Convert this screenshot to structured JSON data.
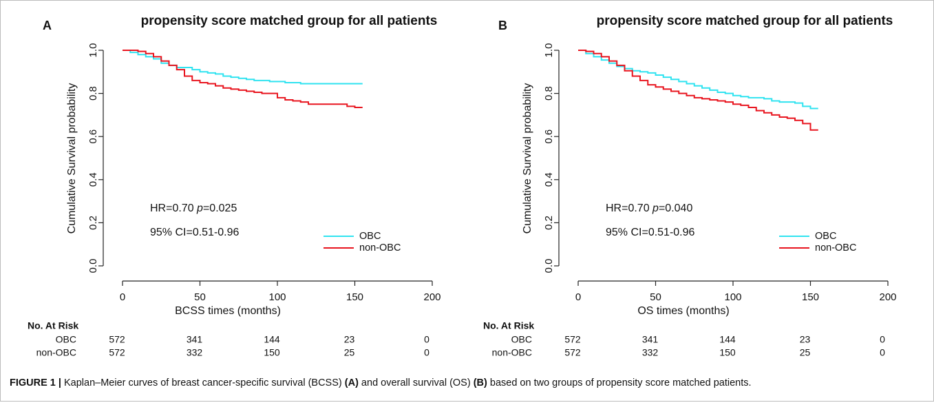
{
  "chart_data": [
    {
      "type": "line",
      "panel": "A",
      "title": "propensity score matched group for all patients",
      "x_label": "BCSS times (months)",
      "y_label": "Cumulative Survival probability",
      "x": [
        0,
        5,
        10,
        15,
        20,
        25,
        30,
        35,
        40,
        45,
        50,
        55,
        60,
        65,
        70,
        75,
        80,
        85,
        90,
        95,
        100,
        105,
        110,
        115,
        120,
        125,
        130,
        135,
        140,
        145,
        150,
        155
      ],
      "series": [
        {
          "name": "OBC",
          "color": "#2fe3f0",
          "values": [
            1.0,
            0.99,
            0.98,
            0.97,
            0.96,
            0.94,
            0.93,
            0.92,
            0.92,
            0.91,
            0.9,
            0.895,
            0.89,
            0.88,
            0.875,
            0.87,
            0.865,
            0.86,
            0.86,
            0.855,
            0.855,
            0.85,
            0.85,
            0.845,
            0.845,
            0.845,
            0.845,
            0.845,
            0.845,
            0.845,
            0.845,
            0.845
          ]
        },
        {
          "name": "non-OBC",
          "color": "#e8141e",
          "values": [
            1.0,
            1.0,
            0.995,
            0.985,
            0.97,
            0.95,
            0.93,
            0.91,
            0.88,
            0.86,
            0.85,
            0.845,
            0.835,
            0.825,
            0.82,
            0.815,
            0.81,
            0.805,
            0.8,
            0.8,
            0.78,
            0.77,
            0.765,
            0.76,
            0.75,
            0.75,
            0.75,
            0.75,
            0.75,
            0.74,
            0.735,
            0.735
          ]
        }
      ],
      "xlim": [
        0,
        200
      ],
      "xticks": [
        0,
        50,
        100,
        150,
        200
      ],
      "ylim": [
        0,
        1
      ],
      "yticks": [
        {
          "value": 0,
          "label": "0.0"
        },
        {
          "value": 0.2,
          "label": "0.2"
        },
        {
          "value": 0.4,
          "label": "0.4"
        },
        {
          "value": 0.6,
          "label": "0.6"
        },
        {
          "value": 0.8,
          "label": "0.8"
        },
        {
          "value": 1,
          "label": "1.0"
        }
      ],
      "legend": "bottom-right",
      "annotations": [
        {
          "parts": [
            "HR=0.70 ",
            "p",
            "=0.025"
          ]
        },
        "95% CI=0.51-0.96"
      ],
      "risk_table": {
        "title": "No. At Risk",
        "rows": [
          {
            "name": "OBC",
            "values": [
              "572",
              "341",
              "144",
              "23",
              "0"
            ]
          },
          {
            "name": "non-OBC",
            "values": [
              "572",
              "332",
              "150",
              "25",
              "0"
            ]
          }
        ]
      }
    },
    {
      "type": "line",
      "panel": "B",
      "title": "propensity score matched group for all patients",
      "x_label": "OS times (months)",
      "y_label": "Cumulative Survival probability",
      "x": [
        0,
        5,
        10,
        15,
        20,
        25,
        30,
        35,
        40,
        45,
        50,
        55,
        60,
        65,
        70,
        75,
        80,
        85,
        90,
        95,
        100,
        105,
        110,
        115,
        120,
        125,
        130,
        135,
        140,
        145,
        150,
        155
      ],
      "series": [
        {
          "name": "OBC",
          "color": "#2fe3f0",
          "values": [
            1.0,
            0.985,
            0.97,
            0.955,
            0.94,
            0.925,
            0.915,
            0.905,
            0.9,
            0.895,
            0.885,
            0.875,
            0.865,
            0.855,
            0.845,
            0.835,
            0.825,
            0.815,
            0.805,
            0.8,
            0.79,
            0.785,
            0.78,
            0.78,
            0.775,
            0.765,
            0.76,
            0.76,
            0.755,
            0.74,
            0.73,
            0.73
          ]
        },
        {
          "name": "non-OBC",
          "color": "#e8141e",
          "values": [
            1.0,
            0.995,
            0.985,
            0.97,
            0.95,
            0.93,
            0.905,
            0.88,
            0.86,
            0.84,
            0.83,
            0.82,
            0.81,
            0.8,
            0.79,
            0.78,
            0.775,
            0.77,
            0.765,
            0.76,
            0.75,
            0.745,
            0.735,
            0.72,
            0.71,
            0.7,
            0.69,
            0.685,
            0.675,
            0.66,
            0.63,
            0.63
          ]
        }
      ],
      "xlim": [
        0,
        200
      ],
      "xticks": [
        0,
        50,
        100,
        150,
        200
      ],
      "ylim": [
        0,
        1
      ],
      "yticks": [
        {
          "value": 0,
          "label": "0.0"
        },
        {
          "value": 0.2,
          "label": "0.2"
        },
        {
          "value": 0.4,
          "label": "0.4"
        },
        {
          "value": 0.6,
          "label": "0.6"
        },
        {
          "value": 0.8,
          "label": "0.8"
        },
        {
          "value": 1,
          "label": "1.0"
        }
      ],
      "legend": "bottom-right",
      "annotations": [
        {
          "parts": [
            "HR=0.70 ",
            "p",
            "=0.040"
          ]
        },
        "95% CI=0.51-0.96"
      ],
      "risk_table": {
        "title": "No. At Risk",
        "rows": [
          {
            "name": "OBC",
            "values": [
              "572",
              "341",
              "144",
              "23",
              "0"
            ]
          },
          {
            "name": "non-OBC",
            "values": [
              "572",
              "332",
              "150",
              "25",
              "0"
            ]
          }
        ]
      }
    }
  ],
  "caption": {
    "parts": [
      {
        "text": "FIGURE 1 |",
        "bold": true
      },
      {
        "text": " Kaplan–Meier curves of breast cancer-specific survival (BCSS) ",
        "bold": false
      },
      {
        "text": "(A)",
        "bold": true
      },
      {
        "text": " and overall survival (OS) ",
        "bold": false
      },
      {
        "text": "(B)",
        "bold": true
      },
      {
        "text": " based on two groups of propensity score matched patients.",
        "bold": false
      }
    ]
  }
}
